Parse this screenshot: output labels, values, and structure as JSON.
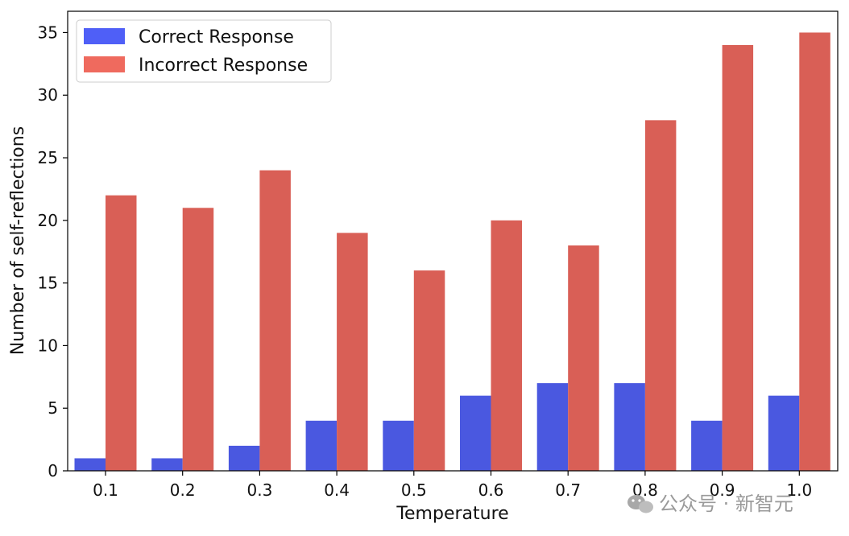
{
  "chart_data": {
    "type": "bar",
    "xlabel": "Temperature",
    "ylabel": "Number of self-reflections",
    "categories": [
      "0.1",
      "0.2",
      "0.3",
      "0.4",
      "0.5",
      "0.6",
      "0.7",
      "0.8",
      "0.9",
      "1.0"
    ],
    "ylim": [
      0,
      36.7
    ],
    "yticks": [
      "0",
      "5",
      "10",
      "15",
      "20",
      "25",
      "30",
      "35"
    ],
    "grid": false,
    "legend_position": "top-left",
    "series": [
      {
        "name": "Correct Response",
        "color": "#4a58e0",
        "legend_color": "#4f5ff7",
        "values": [
          1,
          1,
          2,
          4,
          4,
          6,
          7,
          7,
          4,
          6
        ]
      },
      {
        "name": "Incorrect Response",
        "color": "#d95f56",
        "legend_color": "#ef6a5e",
        "values": [
          22,
          21,
          24,
          19,
          16,
          20,
          18,
          28,
          34,
          35
        ]
      }
    ]
  },
  "watermark": {
    "text": "公众号 · 新智元",
    "icon": "wechat-icon"
  }
}
